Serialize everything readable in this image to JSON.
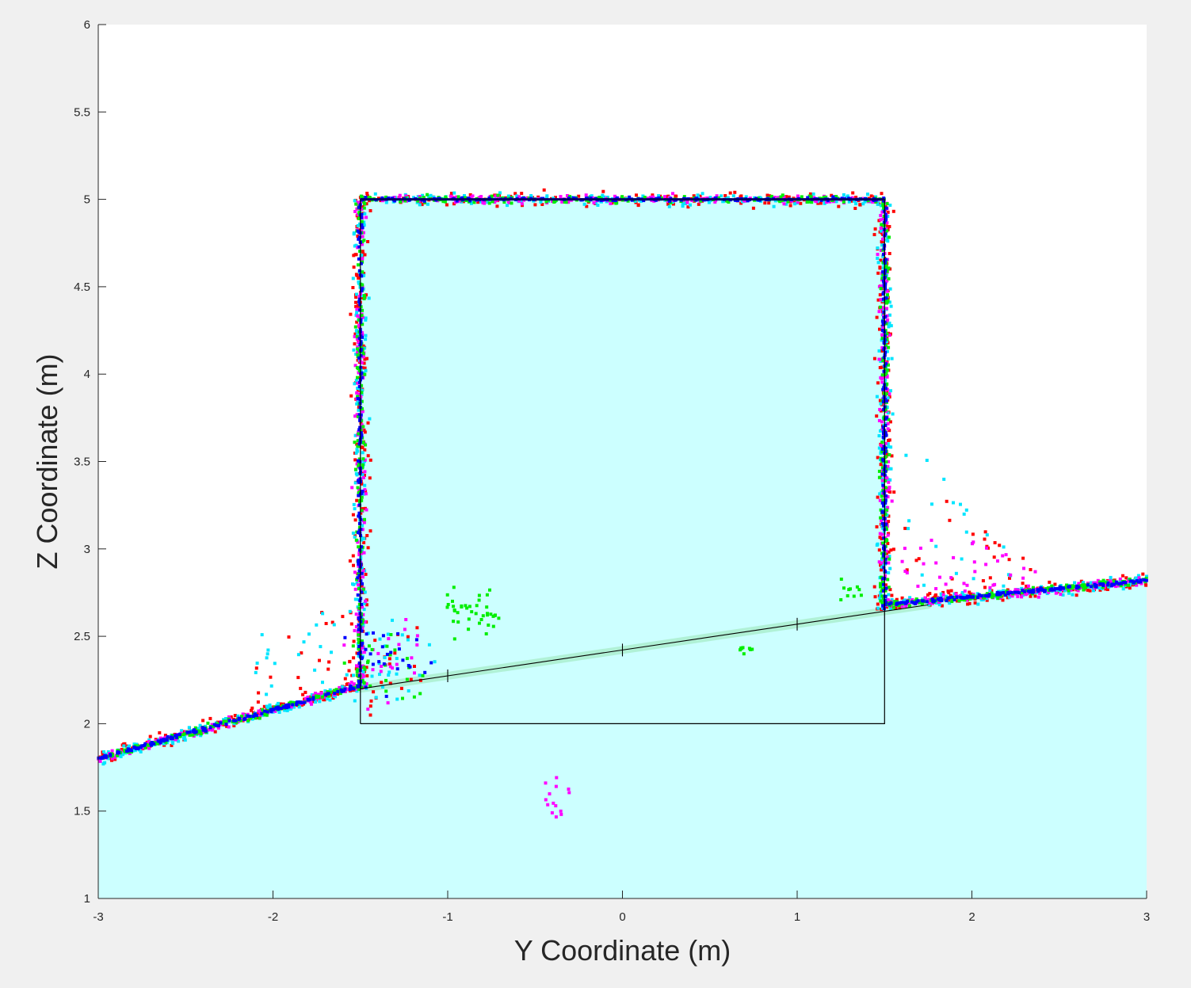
{
  "chart_data": {
    "type": "scatter",
    "xlabel": "Y Coordinate (m)",
    "ylabel": "Z Coordinate (m)",
    "xlim": [
      -3,
      3
    ],
    "ylim": [
      1,
      6
    ],
    "xticks": [
      "-3",
      "-2",
      "-1",
      "0",
      "1",
      "2",
      "3"
    ],
    "yticks": [
      "1",
      "1.5",
      "2",
      "2.5",
      "3",
      "3.5",
      "4",
      "4.5",
      "5",
      "5.5",
      "6"
    ],
    "grid": false,
    "colors": {
      "background": "#ffffff",
      "figure": "#f0f0f0",
      "fill": "#ccffff",
      "band": "#aaeecc",
      "outline": "#000000",
      "series": [
        "#ff0000",
        "#00e5ff",
        "#ff00ff",
        "#00ee00",
        "#0000ff"
      ]
    },
    "region": {
      "tunnel_polygon": [
        [
          -1.5,
          2.0
        ],
        [
          -1.5,
          5.0
        ],
        [
          1.5,
          5.0
        ],
        [
          1.5,
          2.0
        ]
      ],
      "ground_polygon": [
        [
          -3,
          1
        ],
        [
          -3,
          1.8
        ],
        [
          -1.5,
          2.22
        ],
        [
          -1.5,
          2.0
        ],
        [
          1.5,
          2.0
        ],
        [
          1.5,
          2.68
        ],
        [
          3,
          2.82
        ],
        [
          3,
          1
        ]
      ]
    },
    "outline": [
      [
        -1.5,
        2.0
      ],
      [
        -1.5,
        5.0
      ],
      [
        1.5,
        5.0
      ],
      [
        1.5,
        2.0
      ],
      [
        -1.5,
        2.0
      ]
    ],
    "pipe_line": {
      "start": [
        -1.5,
        2.2
      ],
      "end": [
        1.75,
        2.68
      ],
      "markers_x": [
        -1,
        0,
        1
      ]
    },
    "series": [
      {
        "color": "#ff0000",
        "scatter_level": 0.05
      },
      {
        "color": "#00e5ff",
        "scatter_level": 0.04
      },
      {
        "color": "#ff00ff",
        "scatter_level": 0.03
      },
      {
        "color": "#00ee00",
        "scatter_level": 0.025
      },
      {
        "color": "#0000ff",
        "scatter_level": 0.012
      }
    ]
  }
}
